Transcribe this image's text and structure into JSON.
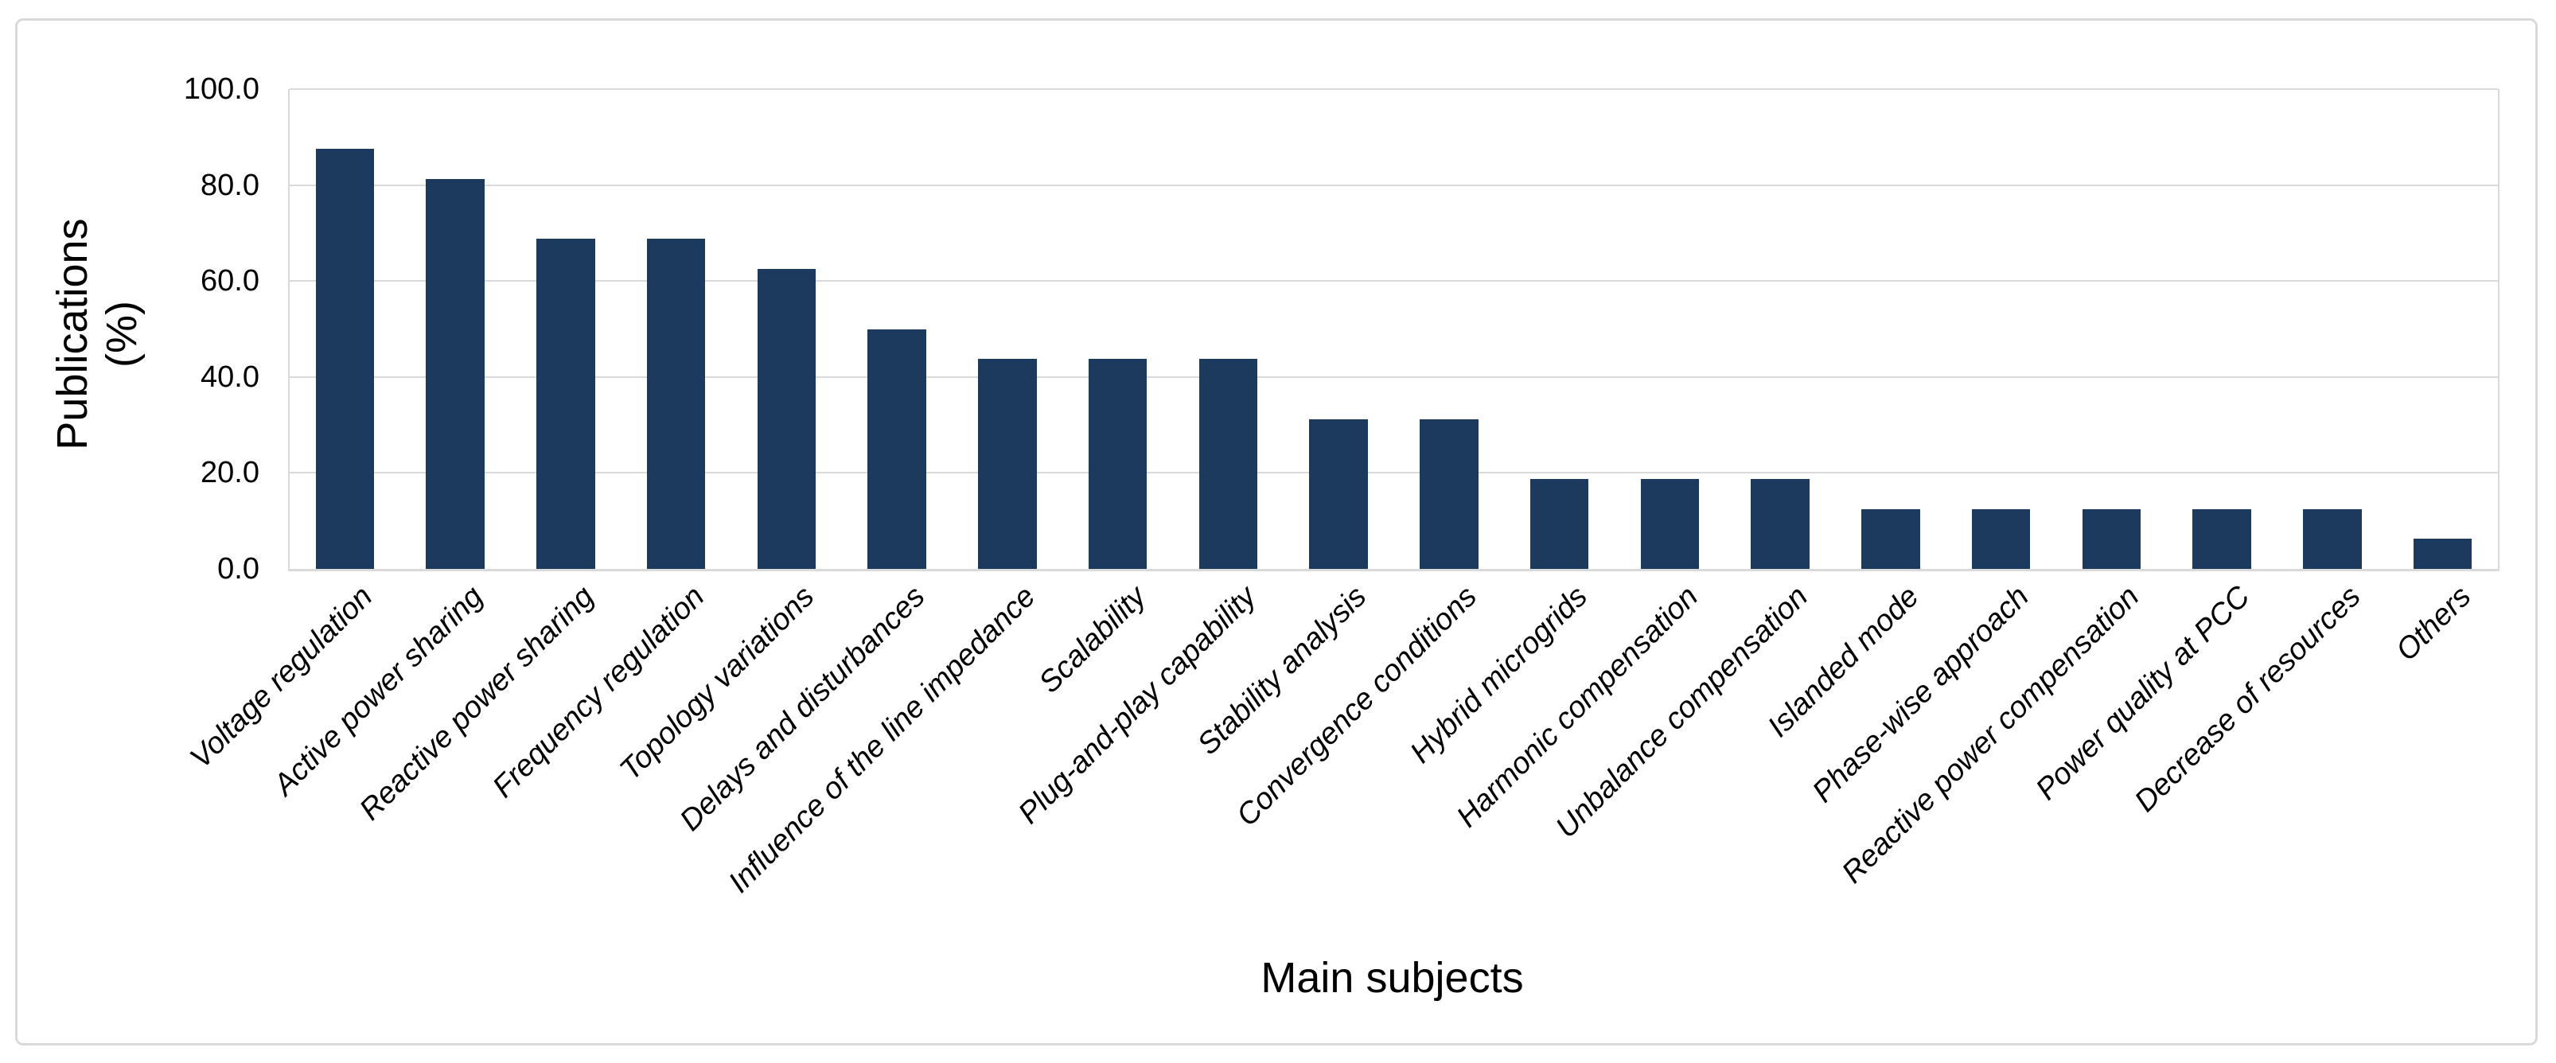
{
  "figure": {
    "background": "#ffffff",
    "frame_border_color": "#d9d9d9"
  },
  "chart_data": {
    "type": "bar",
    "title": "",
    "xlabel": "Main subjects",
    "ylabel": "Publications (%)",
    "ylabel_lines": [
      "Publications",
      "(%)"
    ],
    "categories": [
      "Voltage regulation",
      "Active power sharing",
      "Reactive power sharing",
      "Frequency regulation",
      "Topology variations",
      "Delays and disturbances",
      "Influence of the line impedance",
      "Scalability",
      "Plug-and-play capability",
      "Stability analysis",
      "Convergence conditions",
      "Hybrid microgrids",
      "Harmonic compensation",
      "Unbalance compensation",
      "Islanded mode",
      "Phase-wise approach",
      "Reactive power compensation",
      "Power quality at PCC",
      "Decrease of resources",
      "Others"
    ],
    "values": [
      87.5,
      81.25,
      68.75,
      68.75,
      62.5,
      50,
      43.75,
      43.75,
      43.75,
      31.25,
      31.25,
      18.75,
      18.75,
      18.75,
      12.5,
      12.5,
      12.5,
      12.5,
      12.5,
      6.25
    ],
    "ylim": [
      0,
      100
    ],
    "ytick_step": 20,
    "ytick_labels": [
      "100.0",
      "80.0",
      "60.0",
      "40.0",
      "20.0",
      "0.0"
    ],
    "grid": true,
    "legend": "none",
    "bar_color": "#1b3a5d",
    "gridline_color": "#d9d9d9",
    "axis_color": "#d9d9d9",
    "text_color": "#000000"
  }
}
